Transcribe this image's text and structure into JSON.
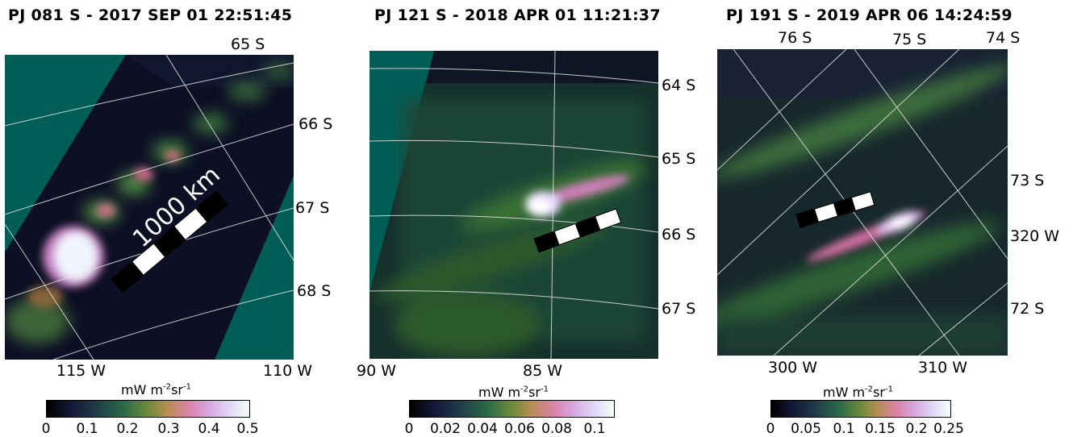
{
  "panels": [
    {
      "title": "PJ 081 S - 2017 SEP 01 22:51:45",
      "lat_labels": [
        "65 S",
        "66 S",
        "67 S",
        "68 S"
      ],
      "lon_labels": [
        "115 W",
        "110 W"
      ],
      "scale_bar_label": "1000 km",
      "colorbar": {
        "unit": "mW m",
        "sup1": "-2",
        "mid": "sr",
        "sup2": "-1",
        "ticks": [
          "0",
          "0.1",
          "0.2",
          "0.3",
          "0.4",
          "0.5"
        ]
      }
    },
    {
      "title": "PJ 121 S - 2018 APR 01 11:21:37",
      "lat_labels": [
        "64 S",
        "65 S",
        "66 S",
        "67 S"
      ],
      "lon_labels": [
        "90 W",
        "85 W"
      ],
      "colorbar": {
        "unit": "mW m",
        "sup1": "-2",
        "mid": "sr",
        "sup2": "-1",
        "ticks": [
          "0",
          "0.02",
          "0.04",
          "0.06",
          "0.08",
          "0.1"
        ]
      }
    },
    {
      "title": "PJ 191 S - 2019 APR 06 14:24:59",
      "lat_labels": [
        "76 S",
        "75 S",
        "74 S",
        "73 S",
        "72 S"
      ],
      "lon_labels": [
        "320 W",
        "300 W",
        "310 W"
      ],
      "colorbar": {
        "unit": "mW m",
        "sup1": "-2",
        "mid": "sr",
        "sup2": "-1",
        "ticks": [
          "0",
          "0.05",
          "0.1",
          "0.15",
          "0.2",
          "0.25"
        ]
      }
    }
  ]
}
